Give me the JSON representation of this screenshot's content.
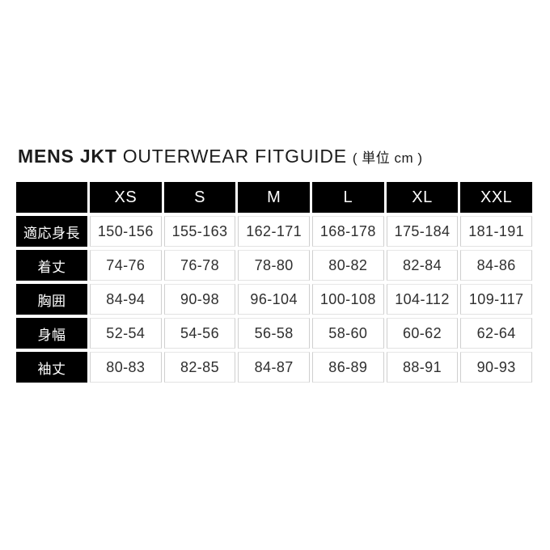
{
  "title": {
    "bold": "MENS JKT",
    "regular": "OUTERWEAR FITGUIDE",
    "unit": "( 単位 cm )"
  },
  "chart_data": {
    "type": "table",
    "title": "MENS JKT OUTERWEAR FITGUIDE",
    "unit_note": "( 単位 cm )",
    "unit": "cm",
    "columns": [
      "XS",
      "S",
      "M",
      "L",
      "XL",
      "XXL"
    ],
    "rows": [
      {
        "label": "適応身長",
        "values": [
          "150-156",
          "155-163",
          "162-171",
          "168-178",
          "175-184",
          "181-191"
        ]
      },
      {
        "label": "着丈",
        "values": [
          "74-76",
          "76-78",
          "78-80",
          "80-82",
          "82-84",
          "84-86"
        ]
      },
      {
        "label": "胸囲",
        "values": [
          "84-94",
          "90-98",
          "96-104",
          "100-108",
          "104-112",
          "109-117"
        ]
      },
      {
        "label": "身幅",
        "values": [
          "52-54",
          "54-56",
          "56-58",
          "58-60",
          "60-62",
          "62-64"
        ]
      },
      {
        "label": "袖丈",
        "values": [
          "80-83",
          "82-85",
          "84-87",
          "86-89",
          "88-91",
          "90-93"
        ]
      }
    ]
  },
  "colors": {
    "background": "#ffffff",
    "header_bg": "#000000",
    "header_text": "#ffffff",
    "cell_text": "#2f2f2f",
    "cell_border": "#cfcfcf",
    "title_text": "#1c1c1c"
  }
}
